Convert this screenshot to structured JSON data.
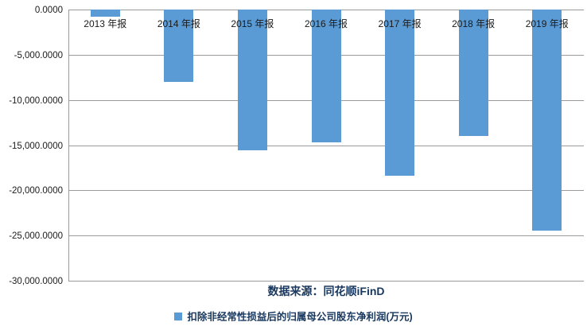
{
  "chart_data": {
    "type": "bar",
    "categories": [
      "2013 年报",
      "2014 年报",
      "2015 年报",
      "2016 年报",
      "2017 年报",
      "2018 年报",
      "2019 年报"
    ],
    "series": [
      {
        "name": "扣除非经常性损益后的归属母公司股东净利润(万元)",
        "values": [
          -800,
          -8000,
          -15550,
          -14650,
          -18350,
          -14000,
          -24450
        ]
      }
    ],
    "title": "",
    "xlabel": "",
    "ylabel": "",
    "ylim": [
      -30000,
      0
    ],
    "ytick_step": 5000,
    "ytick_labels": [
      "0.0000",
      "-5,000.0000",
      "-10,000.0000",
      "-15,000.0000",
      "-20,000.0000",
      "-25,000.0000",
      "-30,000.0000"
    ],
    "grid": true,
    "legend_position": "bottom",
    "bar_color": "#5b9bd5",
    "gridline_color": "#9b9b9b"
  },
  "footer": {
    "source_text": "数据来源：同花顺iFinD"
  },
  "legend": {
    "label": "扣除非经常性损益后的归属母公司股东净利润(万元)",
    "marker_color": "#5b9bd5"
  },
  "colors": {
    "bar": "#5b9bd5",
    "caption_text": "#17375e",
    "axis_text": "#1a1a1a"
  }
}
